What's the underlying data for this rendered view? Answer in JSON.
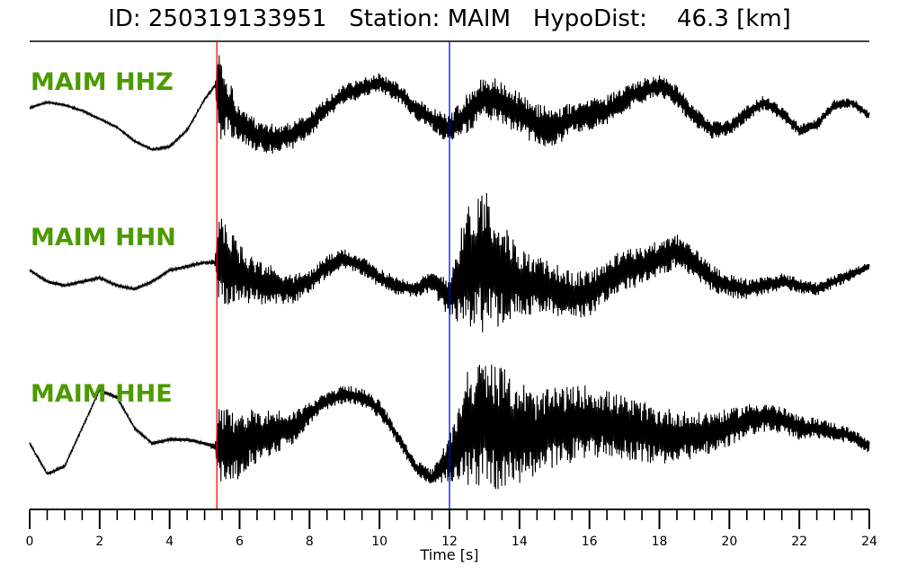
{
  "title": {
    "id_label": "ID:",
    "id_value": "250319133951",
    "station_label": "Station:",
    "station_value": "MAIM",
    "dist_label": "HypoDist:",
    "dist_value": "46.3",
    "dist_unit": "[km]"
  },
  "chart_data": {
    "type": "line",
    "title": "ID: 250319133951   Station: MAIM   HypoDist:    46.3 [km]",
    "xlabel": "Time [s]",
    "xlim": [
      0,
      24
    ],
    "xticks": [
      "0",
      "2",
      "4",
      "6",
      "8",
      "10",
      "12",
      "14",
      "16",
      "18",
      "20",
      "22",
      "24"
    ],
    "minor_tick_step": 0.5,
    "label_color": "#4c9a00",
    "trace_color": "#000000",
    "picks": [
      {
        "phase": "P",
        "time": 5.35,
        "color": "#ff0000"
      },
      {
        "phase": "S",
        "time": 12.0,
        "color": "#0000ff"
      }
    ],
    "series": [
      {
        "name": "MAIM HHZ",
        "envelope_times": [
          0,
          0.5,
          1,
          1.5,
          2,
          2.5,
          3,
          3.5,
          4,
          4.5,
          5,
          5.3,
          5.4,
          5.6,
          6,
          6.5,
          7,
          7.5,
          8,
          8.5,
          9,
          9.5,
          10,
          10.5,
          11,
          11.5,
          12,
          12.5,
          13,
          13.5,
          14,
          14.5,
          15,
          15.5,
          16,
          16.5,
          17,
          17.5,
          18,
          18.5,
          19,
          19.5,
          20,
          20.5,
          21,
          21.5,
          22,
          22.5,
          23,
          23.5,
          24
        ],
        "envelope_values": [
          0.0,
          0.1,
          0.05,
          -0.05,
          -0.2,
          -0.35,
          -0.6,
          -0.75,
          -0.7,
          -0.4,
          0.15,
          0.4,
          0.3,
          0.1,
          -0.3,
          -0.5,
          -0.55,
          -0.5,
          -0.3,
          0.0,
          0.25,
          0.35,
          0.45,
          0.3,
          0.0,
          -0.2,
          -0.4,
          -0.1,
          0.2,
          0.1,
          -0.1,
          -0.3,
          -0.35,
          -0.2,
          -0.1,
          -0.05,
          0.15,
          0.3,
          0.4,
          0.2,
          -0.15,
          -0.4,
          -0.35,
          -0.1,
          0.1,
          -0.1,
          -0.4,
          -0.3,
          0.05,
          0.1,
          -0.15
        ],
        "noise_amplitude": [
          0.02,
          0.02,
          0.02,
          0.02,
          0.02,
          0.02,
          0.02,
          0.02,
          0.03,
          0.03,
          0.03,
          0.05,
          0.9,
          0.6,
          0.3,
          0.3,
          0.28,
          0.25,
          0.22,
          0.2,
          0.18,
          0.18,
          0.18,
          0.18,
          0.2,
          0.2,
          0.3,
          0.35,
          0.4,
          0.4,
          0.38,
          0.38,
          0.35,
          0.3,
          0.3,
          0.28,
          0.25,
          0.22,
          0.2,
          0.2,
          0.18,
          0.16,
          0.15,
          0.14,
          0.13,
          0.12,
          0.11,
          0.1,
          0.1,
          0.09,
          0.08
        ]
      },
      {
        "name": "MAIM HHN",
        "envelope_times": [
          0,
          0.5,
          1,
          1.5,
          2,
          2.5,
          3,
          3.5,
          4,
          4.5,
          5,
          5.3,
          5.4,
          5.6,
          6,
          6.5,
          7,
          7.5,
          8,
          8.5,
          9,
          9.5,
          10,
          10.5,
          11,
          11.5,
          12,
          12.5,
          13,
          13.5,
          14,
          14.5,
          15,
          15.5,
          16,
          16.5,
          17,
          17.5,
          18,
          18.5,
          19,
          19.5,
          20,
          20.5,
          21,
          21.5,
          22,
          22.5,
          23,
          23.5,
          24
        ],
        "envelope_values": [
          0.05,
          -0.1,
          -0.15,
          -0.1,
          -0.05,
          -0.15,
          -0.2,
          -0.1,
          0.05,
          0.1,
          0.15,
          0.15,
          0.2,
          0.1,
          0.0,
          -0.1,
          -0.15,
          -0.2,
          -0.1,
          0.1,
          0.2,
          0.1,
          -0.05,
          -0.15,
          -0.2,
          -0.1,
          -0.3,
          0.1,
          0.2,
          0.0,
          -0.1,
          -0.15,
          -0.2,
          -0.3,
          -0.25,
          -0.1,
          0.05,
          0.1,
          0.2,
          0.3,
          0.15,
          -0.05,
          -0.15,
          -0.2,
          -0.15,
          -0.1,
          -0.15,
          -0.2,
          -0.1,
          0.0,
          0.1
        ],
        "noise_amplitude": [
          0.02,
          0.02,
          0.02,
          0.02,
          0.02,
          0.02,
          0.02,
          0.02,
          0.02,
          0.02,
          0.02,
          0.05,
          0.6,
          0.55,
          0.4,
          0.3,
          0.25,
          0.2,
          0.15,
          0.15,
          0.13,
          0.13,
          0.12,
          0.12,
          0.12,
          0.13,
          0.3,
          0.8,
          1.0,
          0.7,
          0.45,
          0.38,
          0.35,
          0.33,
          0.3,
          0.3,
          0.28,
          0.26,
          0.25,
          0.22,
          0.2,
          0.18,
          0.16,
          0.14,
          0.12,
          0.11,
          0.1,
          0.09,
          0.08,
          0.08,
          0.07
        ]
      },
      {
        "name": "MAIM HHE",
        "envelope_times": [
          0,
          0.5,
          1,
          1.5,
          2,
          2.5,
          3,
          3.5,
          4,
          4.5,
          5,
          5.3,
          5.4,
          5.6,
          6,
          6.5,
          7,
          7.5,
          8,
          8.5,
          9,
          9.5,
          10,
          10.5,
          11,
          11.5,
          12,
          12.5,
          13,
          13.5,
          14,
          14.5,
          15,
          15.5,
          16,
          16.5,
          17,
          17.5,
          18,
          18.5,
          19,
          19.5,
          20,
          20.5,
          21,
          21.5,
          22,
          22.5,
          23,
          23.5,
          24
        ],
        "envelope_values": [
          -0.1,
          -0.5,
          -0.4,
          0.1,
          0.6,
          0.5,
          0.1,
          -0.1,
          -0.05,
          -0.05,
          -0.1,
          -0.15,
          -0.1,
          -0.2,
          -0.1,
          0.0,
          0.05,
          0.1,
          0.3,
          0.45,
          0.55,
          0.5,
          0.35,
          0.0,
          -0.4,
          -0.55,
          -0.3,
          0.1,
          0.15,
          0.1,
          0.05,
          0.0,
          0.1,
          0.15,
          0.2,
          0.15,
          0.1,
          0.05,
          0.0,
          0.0,
          0.0,
          0.05,
          0.1,
          0.2,
          0.25,
          0.2,
          0.1,
          0.1,
          0.05,
          0.0,
          -0.15
        ],
        "noise_amplitude": [
          0.02,
          0.02,
          0.02,
          0.02,
          0.02,
          0.02,
          0.02,
          0.02,
          0.02,
          0.02,
          0.02,
          0.05,
          0.5,
          0.55,
          0.45,
          0.35,
          0.3,
          0.22,
          0.15,
          0.12,
          0.12,
          0.12,
          0.12,
          0.1,
          0.1,
          0.1,
          0.3,
          0.8,
          0.85,
          0.8,
          0.7,
          0.55,
          0.55,
          0.5,
          0.48,
          0.45,
          0.42,
          0.4,
          0.38,
          0.35,
          0.3,
          0.28,
          0.25,
          0.22,
          0.2,
          0.18,
          0.16,
          0.14,
          0.12,
          0.1,
          0.09
        ]
      }
    ]
  }
}
